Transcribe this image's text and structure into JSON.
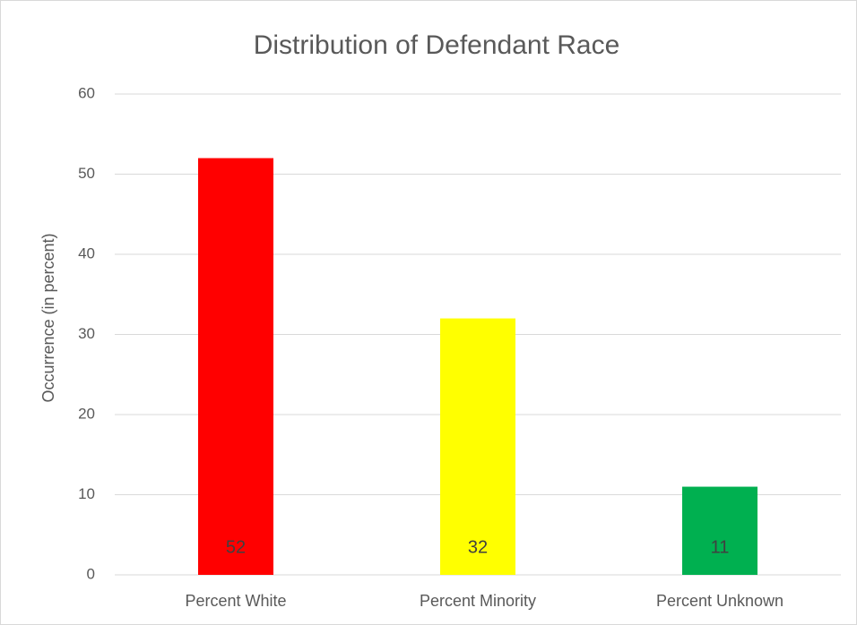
{
  "chart_data": {
    "type": "bar",
    "title": "Distribution of Defendant Race",
    "y_label": "Occurrence (in percent)",
    "categories": [
      "Percent White",
      "Percent Minority",
      "Percent Unknown"
    ],
    "values": [
      52,
      32,
      11
    ],
    "colors": [
      "#ff0000",
      "#ffff00",
      "#00b050"
    ],
    "ylim": [
      0,
      60
    ],
    "yticks": [
      0,
      10,
      20,
      30,
      40,
      50,
      60
    ],
    "grid": true
  }
}
